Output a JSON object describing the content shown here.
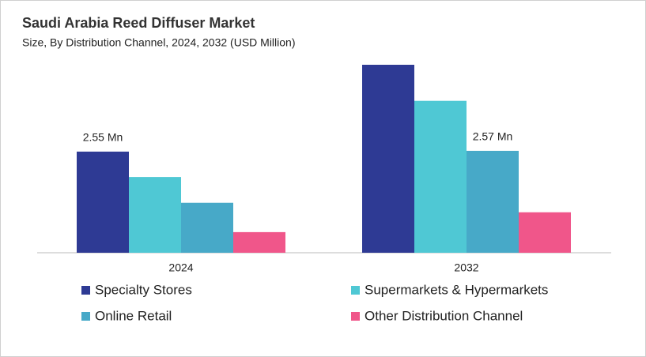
{
  "chart_data": {
    "type": "bar",
    "title": "Saudi Arabia Reed Diffuser Market",
    "subtitle": "Size, By Distribution Channel, 2024, 2032 (USD Million)",
    "categories": [
      "2024",
      "2032"
    ],
    "series": [
      {
        "name": "Specialty Stores",
        "color": "#2e3a94",
        "values": [
          2.55,
          4.74
        ],
        "value_labels": [
          "2.55 Mn",
          null
        ]
      },
      {
        "name": "Supermarkets & Hypermarkets",
        "color": "#4fc8d4",
        "values": [
          1.91,
          3.83
        ]
      },
      {
        "name": "Online Retail",
        "color": "#47a9c8",
        "values": [
          1.26,
          2.57
        ],
        "value_labels": [
          null,
          "2.57 Mn"
        ]
      },
      {
        "name": "Other Distribution Channel",
        "color": "#f0568a",
        "values": [
          0.52,
          1.02
        ]
      }
    ]
  }
}
